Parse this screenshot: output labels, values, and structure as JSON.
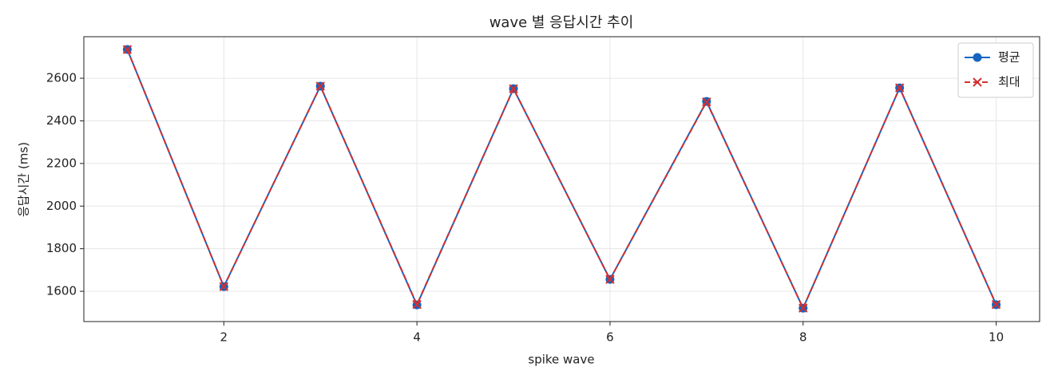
{
  "chart_data": {
    "type": "line",
    "title": "wave 별 응답시간 추이",
    "xlabel": "spike wave",
    "ylabel": "응답시간 (ms)",
    "x": [
      1,
      2,
      3,
      4,
      5,
      6,
      7,
      8,
      9,
      10
    ],
    "series": [
      {
        "name": "평균",
        "color": "#1565c0",
        "marker": "o",
        "linestyle": "solid",
        "values": [
          2735,
          1622,
          2563,
          1536,
          2551,
          1656,
          2491,
          1521,
          2555,
          1537
        ]
      },
      {
        "name": "최대",
        "color": "#d32f2f",
        "marker": "x",
        "linestyle": "dashed",
        "values": [
          2735,
          1622,
          2563,
          1538,
          2551,
          1656,
          2489,
          1521,
          2555,
          1538
        ]
      }
    ],
    "xlim": [
      0.55,
      10.45
    ],
    "ylim": [
      1458,
      2795
    ],
    "xticks": [
      2,
      4,
      6,
      8,
      10
    ],
    "yticks": [
      1600,
      1800,
      2000,
      2200,
      2400,
      2600
    ],
    "grid": true,
    "legend": "upper right"
  }
}
